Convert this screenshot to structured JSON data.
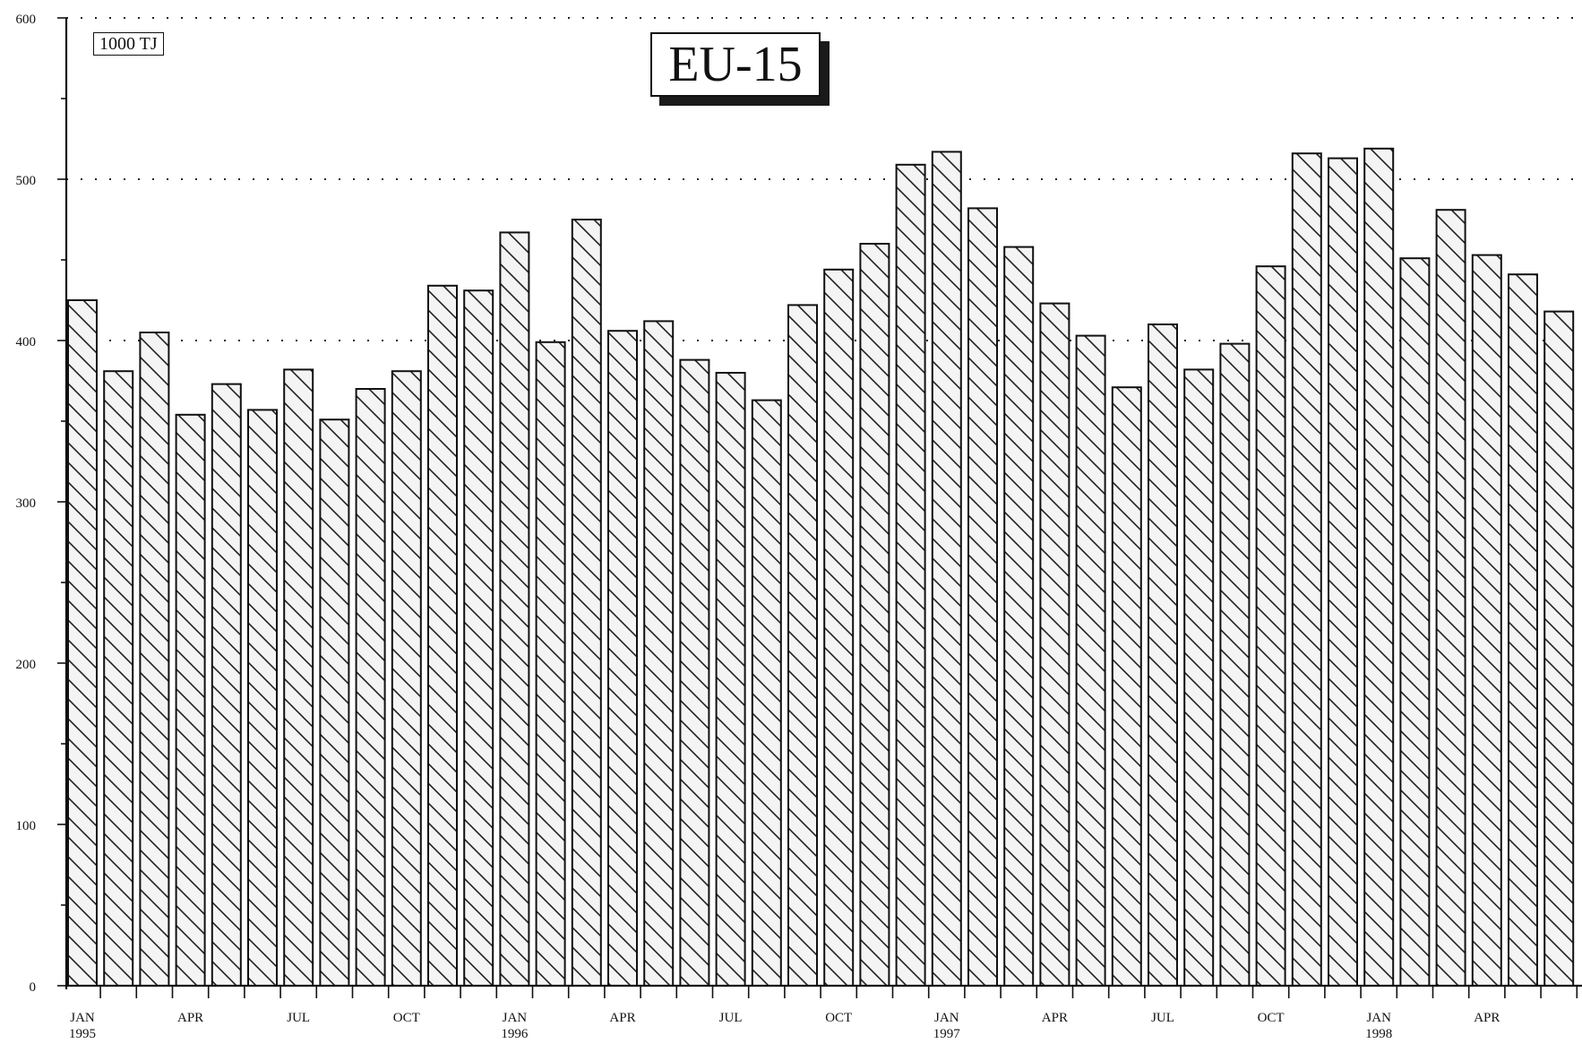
{
  "chart_data": {
    "type": "bar",
    "title": "EU-15",
    "unit_label": "1000 TJ",
    "ylabel": "",
    "xlabel": "",
    "ylim": [
      0,
      600
    ],
    "y_ticks": [
      0,
      100,
      200,
      300,
      400,
      500,
      600
    ],
    "y_tick_labels": [
      "0",
      "100",
      "200",
      "300",
      "400",
      "500",
      "600"
    ],
    "gridlines": "dotted at 400, 500, 600",
    "categories": [
      "JAN 1995",
      "FEB 1995",
      "MAR 1995",
      "APR 1995",
      "MAY 1995",
      "JUN 1995",
      "JUL 1995",
      "AUG 1995",
      "SEP 1995",
      "OCT 1995",
      "NOV 1995",
      "DEC 1995",
      "JAN 1996",
      "FEB 1996",
      "MAR 1996",
      "APR 1996",
      "MAY 1996",
      "JUN 1996",
      "JUL 1996",
      "AUG 1996",
      "SEP 1996",
      "OCT 1996",
      "NOV 1996",
      "DEC 1996",
      "JAN 1997",
      "FEB 1997",
      "MAR 1997",
      "APR 1997",
      "MAY 1997",
      "JUN 1997",
      "JUL 1997",
      "AUG 1997",
      "SEP 1997",
      "OCT 1997",
      "NOV 1997",
      "DEC 1997",
      "JAN 1998",
      "FEB 1998",
      "MAR 1998",
      "APR 1998",
      "MAY 1998",
      "JUN 1998"
    ],
    "values": [
      425,
      381,
      405,
      354,
      373,
      357,
      382,
      351,
      370,
      381,
      434,
      431,
      467,
      399,
      475,
      406,
      412,
      388,
      380,
      363,
      422,
      444,
      460,
      509,
      517,
      482,
      458,
      423,
      403,
      371,
      410,
      382,
      398,
      446,
      516,
      513,
      519,
      451,
      481,
      453,
      441,
      418
    ],
    "x_tick_labels": [
      {
        "index": 0,
        "month": "JAN",
        "year": "1995"
      },
      {
        "index": 3,
        "month": "APR",
        "year": ""
      },
      {
        "index": 6,
        "month": "JUL",
        "year": ""
      },
      {
        "index": 9,
        "month": "OCT",
        "year": ""
      },
      {
        "index": 12,
        "month": "JAN",
        "year": "1996"
      },
      {
        "index": 15,
        "month": "APR",
        "year": ""
      },
      {
        "index": 18,
        "month": "JUL",
        "year": ""
      },
      {
        "index": 21,
        "month": "OCT",
        "year": ""
      },
      {
        "index": 24,
        "month": "JAN",
        "year": "1997"
      },
      {
        "index": 27,
        "month": "APR",
        "year": ""
      },
      {
        "index": 30,
        "month": "JUL",
        "year": ""
      },
      {
        "index": 33,
        "month": "OCT",
        "year": ""
      },
      {
        "index": 36,
        "month": "JAN",
        "year": "1998"
      },
      {
        "index": 39,
        "month": "APR",
        "year": ""
      }
    ],
    "bar_fill": "diagonal hatch",
    "colors": {
      "line": "#111111",
      "background": "#ffffff"
    }
  }
}
